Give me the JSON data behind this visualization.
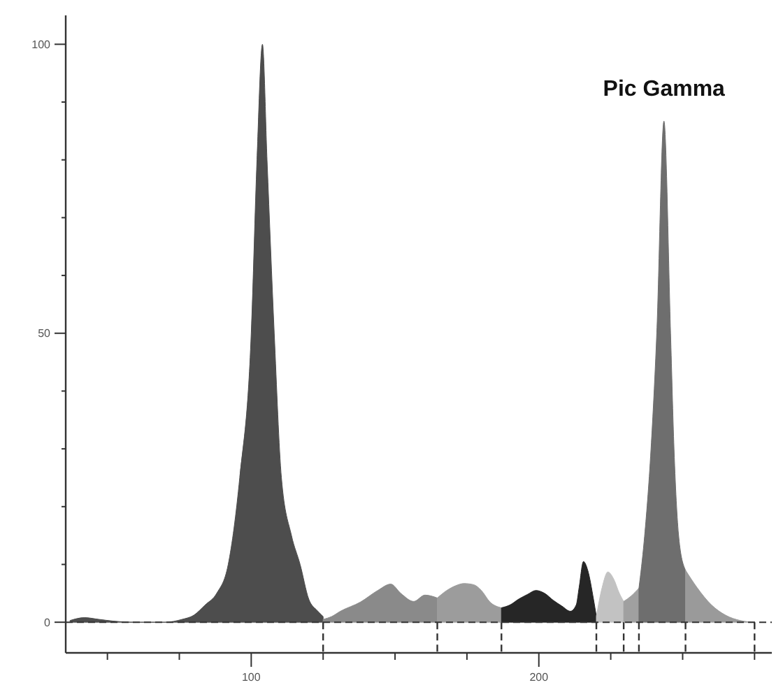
{
  "chart_data": {
    "type": "area",
    "annotations": [
      {
        "text": "Pic Gamma",
        "x": 243.5,
        "y": 86.7
      }
    ],
    "xlim": [
      35.5,
      281
    ],
    "ylim": [
      -5.3,
      105
    ],
    "xticks": [
      {
        "value": 50,
        "label": null
      },
      {
        "value": 75,
        "label": null
      },
      100,
      {
        "value": 125,
        "label": null
      },
      {
        "value": 150,
        "label": null
      },
      {
        "value": 175,
        "label": null
      },
      200,
      {
        "value": 225,
        "label": null
      },
      {
        "value": 250,
        "label": null
      },
      {
        "value": 275,
        "label": null
      }
    ],
    "yticks": [
      0,
      {
        "value": 10,
        "label": null
      },
      {
        "value": 20,
        "label": null
      },
      {
        "value": 30,
        "label": null
      },
      {
        "value": 40,
        "label": null
      },
      50,
      {
        "value": 60,
        "label": null
      },
      {
        "value": 70,
        "label": null
      },
      {
        "value": 80,
        "label": null
      },
      {
        "value": 90,
        "label": null
      },
      100
    ],
    "grid": false,
    "series": [
      {
        "color": "#4d4d4d",
        "x": [
          37,
          42,
          47,
          52,
          60,
          70,
          76,
          80,
          84,
          88,
          92,
          96,
          100,
          102,
          103.9,
          105.5,
          108,
          110.5,
          114,
          117,
          120,
          123,
          125
        ],
        "values": [
          0.3,
          0.8,
          0.5,
          0.2,
          0,
          0,
          0.5,
          1.2,
          3,
          5,
          10,
          25,
          50,
          80,
          100,
          80,
          50,
          25,
          15,
          10,
          4,
          2,
          1
        ]
      },
      {
        "color": "#8a8a8a",
        "x": [
          125,
          128,
          131,
          138,
          144,
          148.5,
          152,
          156.5,
          160.4,
          164.7
        ],
        "values": [
          0.5,
          1,
          1.9,
          3.5,
          5.5,
          6.6,
          5,
          3.6,
          4.7,
          4.2
        ]
      },
      {
        "color": "#9c9c9c",
        "x": [
          164.7,
          168,
          171,
          174,
          177.3,
          180,
          183,
          187
        ],
        "values": [
          4.2,
          5.5,
          6.3,
          6.7,
          6.5,
          5.5,
          3.5,
          2.5
        ]
      },
      {
        "color": "#262626",
        "x": [
          187,
          190,
          193,
          196,
          199,
          202,
          205,
          208,
          211,
          213,
          214,
          215.5,
          217,
          219,
          220
        ],
        "values": [
          2.5,
          3,
          4,
          4.8,
          5.5,
          5,
          3.8,
          2.8,
          1.9,
          3,
          6,
          10.5,
          9,
          4,
          1
        ]
      },
      {
        "color": "#c2c2c2",
        "x": [
          220,
          222,
          224,
          226,
          228,
          229.5
        ],
        "values": [
          1,
          6,
          8.7,
          7.5,
          5,
          3.6
        ]
      },
      {
        "color": "#a0a0a0",
        "x": [
          229.5,
          232,
          234.8
        ],
        "values": [
          3.6,
          4.5,
          5.9
        ]
      },
      {
        "color": "#6e6e6e",
        "x": [
          234.8,
          236.6,
          239,
          241,
          243.5,
          245.8,
          247,
          248.8,
          251
        ],
        "values": [
          5.9,
          14,
          30,
          50,
          86.7,
          50,
          30,
          14,
          9
        ]
      },
      {
        "color": "#9a9a9a",
        "x": [
          251,
          255,
          260,
          265,
          270,
          275
        ],
        "values": [
          9,
          6,
          3,
          1.2,
          0.3,
          0
        ]
      }
    ],
    "ref_lines": [
      {
        "axis": "y",
        "value": 0,
        "line_style": "dashed"
      }
    ]
  }
}
